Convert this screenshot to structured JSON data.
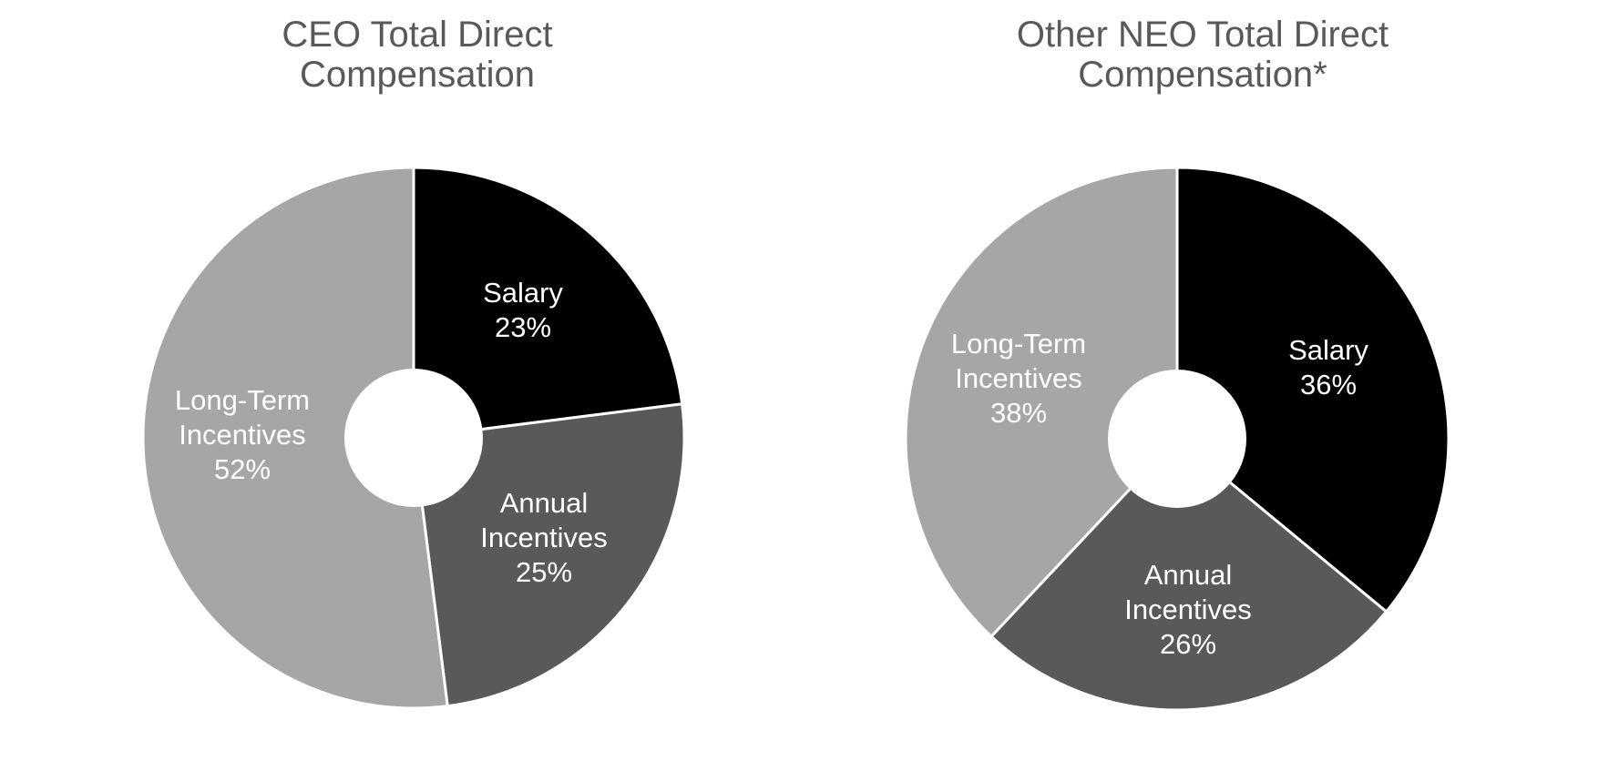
{
  "chart_data": [
    {
      "type": "pie",
      "variant": "donut",
      "title_lines": [
        "CEO Total Direct",
        "Compensation"
      ],
      "start_angle_deg": 0,
      "direction": "clockwise",
      "slices": [
        {
          "name_lines": [
            "Salary"
          ],
          "value": 23,
          "value_label": "23%",
          "color": "#000000"
        },
        {
          "name_lines": [
            "Annual",
            "Incentives"
          ],
          "value": 25,
          "value_label": "25%",
          "color": "#595959"
        },
        {
          "name_lines": [
            "Long-Term",
            "Incentives"
          ],
          "value": 52,
          "value_label": "52%",
          "color": "#a6a6a6"
        }
      ]
    },
    {
      "type": "pie",
      "variant": "donut",
      "title_lines": [
        "Other NEO Total Direct",
        "Compensation*"
      ],
      "start_angle_deg": 0,
      "direction": "clockwise",
      "slices": [
        {
          "name_lines": [
            "Salary"
          ],
          "value": 36,
          "value_label": "36%",
          "color": "#000000"
        },
        {
          "name_lines": [
            "Annual",
            "Incentives"
          ],
          "value": 26,
          "value_label": "26%",
          "color": "#595959"
        },
        {
          "name_lines": [
            "Long-Term",
            "Incentives"
          ],
          "value": 38,
          "value_label": "38%",
          "color": "#a6a6a6"
        }
      ]
    }
  ]
}
